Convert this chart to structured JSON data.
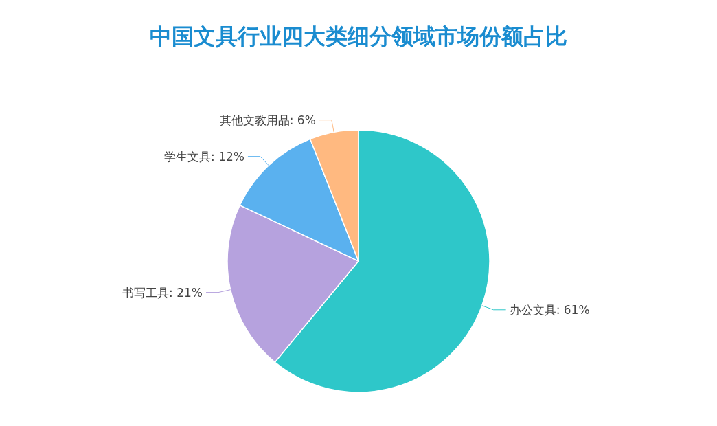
{
  "chart_data": {
    "type": "pie",
    "title": "中国文具行业四大类细分领域市场份额占比",
    "categories": [
      "办公文具",
      "书写工具",
      "学生文具",
      "其他文教用品"
    ],
    "values": [
      61,
      21,
      12,
      6
    ],
    "colors": [
      "#2ec7c9",
      "#b6a2de",
      "#5ab1ef",
      "#ffb980"
    ],
    "value_labels": [
      "61%",
      "21%",
      "12%",
      "6%"
    ]
  }
}
